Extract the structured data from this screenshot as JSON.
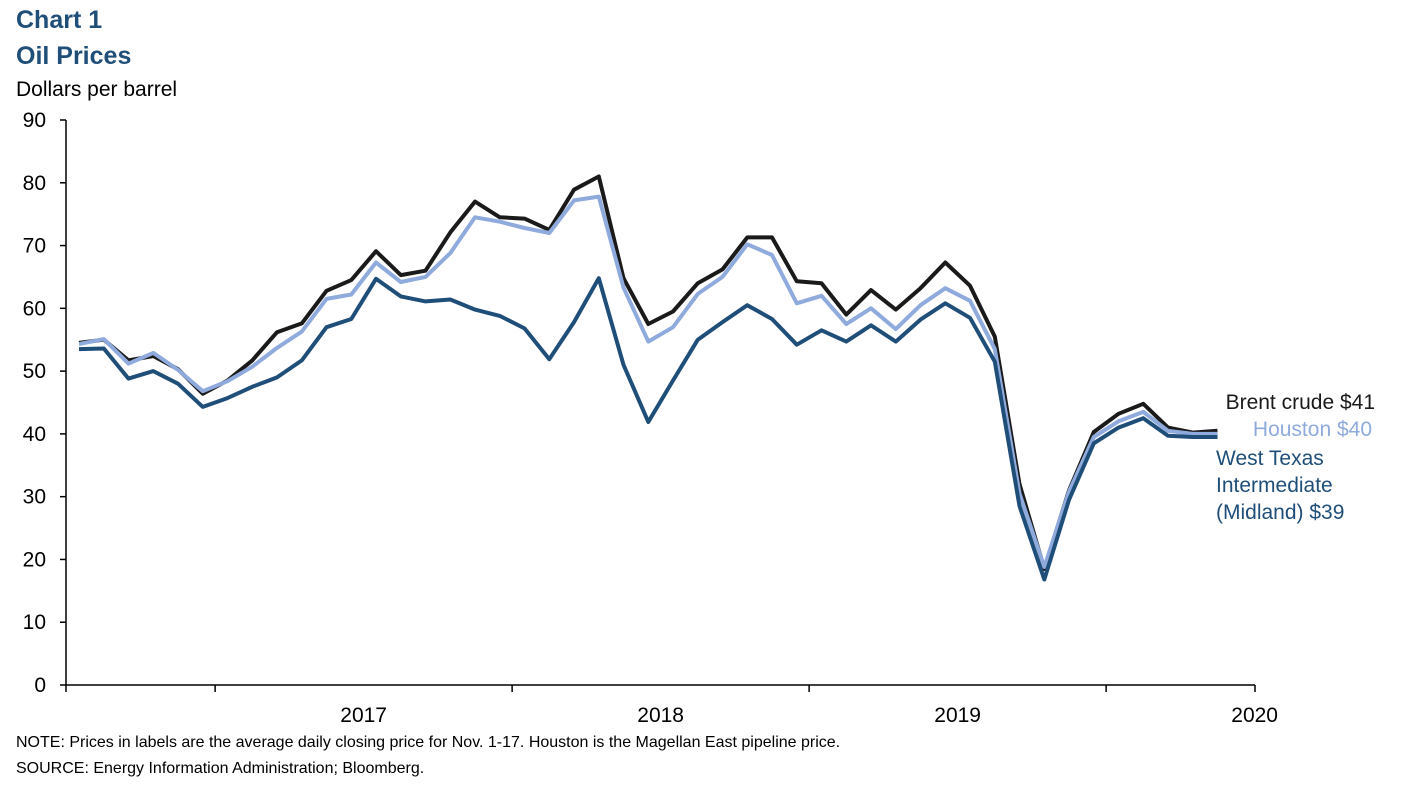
{
  "header": {
    "chart_number": "Chart 1",
    "title": "Oil Prices",
    "y_unit": "Dollars per barrel"
  },
  "footer": {
    "note": "NOTE: Prices in labels are the average daily closing price for Nov. 1-17. Houston is the Magellan East pipeline price.",
    "source": "SOURCE: Energy Information Administration; Bloomberg."
  },
  "chart_data": {
    "type": "line",
    "title": "Oil Prices",
    "ylabel": "Dollars per barrel",
    "ylim": [
      0,
      90
    ],
    "yticks": [
      0,
      10,
      20,
      30,
      40,
      50,
      60,
      70,
      80,
      90
    ],
    "x_tick_labels": [
      "2017",
      "2018",
      "2019",
      "2020"
    ],
    "x_start": "2016-07",
    "grid": false,
    "series": [
      {
        "name": "Brent crude",
        "label": "Brent crude $41",
        "color": "#1a1a1a",
        "values": [
          54.5,
          55,
          51.7,
          52.4,
          50.3,
          46.4,
          48.5,
          51.7,
          56.2,
          57.6,
          62.8,
          64.5,
          69.1,
          65.3,
          66,
          72.1,
          77,
          74.5,
          74.3,
          72.5,
          78.9,
          81,
          64.8,
          57.5,
          59.5,
          64,
          66.2,
          71.3,
          71.3,
          64.3,
          64,
          59,
          62.9,
          59.8,
          63.2,
          67.3,
          63.6,
          55.5,
          32,
          18.5,
          31,
          40.3,
          43.2,
          44.8,
          41,
          40.2,
          40.5
        ]
      },
      {
        "name": "Houston",
        "label": "Houston $40",
        "color": "#8faadc",
        "values": [
          54.3,
          55.1,
          51.2,
          52.9,
          50.2,
          46.8,
          48.4,
          50.7,
          53.7,
          56.3,
          61.5,
          62.2,
          67.3,
          64.2,
          65,
          68.8,
          74.5,
          73.8,
          72.8,
          72,
          77.2,
          77.8,
          63.3,
          54.7,
          57,
          62.3,
          65,
          70.2,
          68.5,
          60.8,
          62,
          57.5,
          60,
          56.7,
          60.5,
          63.2,
          61.2,
          53.5,
          30.5,
          18.8,
          30.8,
          39.5,
          42,
          43.5,
          40.5,
          40,
          40
        ]
      },
      {
        "name": "West Texas Intermediate (Midland)",
        "label_lines": [
          "West Texas",
          "Intermediate",
          "(Midland) $39"
        ],
        "color": "#1f4e79",
        "values": [
          53.5,
          53.6,
          48.8,
          50,
          48,
          44.3,
          45.7,
          47.5,
          49,
          51.7,
          57,
          58.3,
          64.7,
          61.9,
          61.1,
          61.4,
          59.8,
          58.8,
          56.8,
          51.9,
          57.8,
          64.8,
          51,
          41.9,
          48.5,
          55,
          57.8,
          60.5,
          58.3,
          54.2,
          56.5,
          54.7,
          57.3,
          54.7,
          58.2,
          60.8,
          58.5,
          51.5,
          28.5,
          16.8,
          29.5,
          38.5,
          41,
          42.5,
          39.7,
          39.5,
          39.5
        ]
      }
    ]
  }
}
